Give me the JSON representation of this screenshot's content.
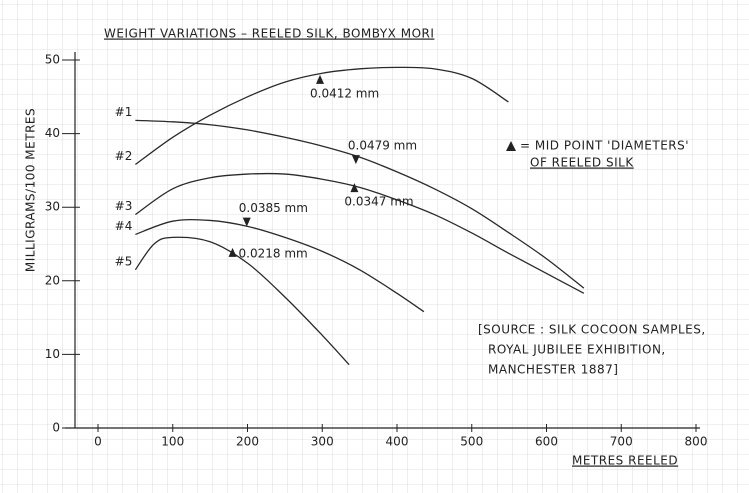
{
  "chart_data": {
    "type": "line",
    "title": "WEIGHT VARIATIONS – REELED SILK, BOMBYX MORI",
    "xlabel": "METRES REELED",
    "ylabel": "MILLIGRAMS/100 METRES",
    "xlim": [
      0,
      800
    ],
    "ylim": [
      0,
      50
    ],
    "xticks": [
      0,
      100,
      200,
      300,
      400,
      500,
      600,
      700,
      800
    ],
    "yticks": [
      0,
      10,
      20,
      30,
      40,
      50
    ],
    "series": [
      {
        "name": "#1",
        "color": "#2a2a2a",
        "x": [
          50,
          100,
          150,
          200,
          250,
          300,
          350,
          400,
          450,
          500,
          550,
          600,
          650
        ],
        "values": [
          41.8,
          41.6,
          41.2,
          40.5,
          39.5,
          38.3,
          36.8,
          34.8,
          32.5,
          29.8,
          26.5,
          23,
          19
        ]
      },
      {
        "name": "#2",
        "color": "#2a2a2a",
        "x": [
          50,
          100,
          150,
          200,
          250,
          300,
          350,
          400,
          450,
          500,
          549
        ],
        "values": [
          35.8,
          39.5,
          42.5,
          45,
          47,
          48.2,
          48.8,
          49,
          48.8,
          47.5,
          44.3
        ]
      },
      {
        "name": "#3",
        "color": "#2a2a2a",
        "x": [
          50,
          100,
          150,
          200,
          250,
          300,
          350,
          400,
          450,
          500,
          550,
          600,
          650
        ],
        "values": [
          29,
          32.5,
          34,
          34.5,
          34.5,
          33.8,
          32.7,
          31,
          29,
          26.5,
          23.7,
          21,
          18.3
        ]
      },
      {
        "name": "#4",
        "color": "#2a2a2a",
        "x": [
          50,
          100,
          150,
          200,
          250,
          300,
          350,
          400,
          436
        ],
        "values": [
          26.3,
          28.1,
          28.2,
          27.4,
          25.9,
          24,
          21.5,
          18.3,
          15.8
        ]
      },
      {
        "name": "#5",
        "color": "#2a2a2a",
        "x": [
          50,
          75,
          100,
          150,
          200,
          250,
          300,
          336
        ],
        "values": [
          21.5,
          25,
          25.9,
          25.3,
          22.4,
          17.8,
          12.6,
          8.6
        ]
      }
    ],
    "annotations": [
      {
        "text": "0.0412 mm",
        "x": 297,
        "y": 47.3,
        "label_position": "below"
      },
      {
        "text": "0.0479 mm",
        "x": 345,
        "y": 36.4,
        "label_position": "above"
      },
      {
        "text": "0.0347 mm",
        "x": 343,
        "y": 32.6,
        "label_position": "below"
      },
      {
        "text": "0.0385 mm",
        "x": 199,
        "y": 27.9,
        "label_position": "above"
      },
      {
        "text": "0.0218 mm",
        "x": 180,
        "y": 23.8,
        "label_position": "right"
      }
    ],
    "legend_note": [
      "= MID POINT 'DIAMETERS'",
      "OF REELED SILK"
    ],
    "source": [
      "[SOURCE : SILK COCOON SAMPLES,",
      "ROYAL JUBILEE EXHIBITION,",
      "MANCHESTER 1887]"
    ]
  }
}
